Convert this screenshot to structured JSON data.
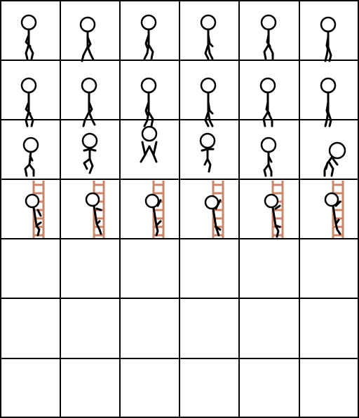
{
  "sprite_sheet": {
    "grid": {
      "columns": 6,
      "rows": 7
    },
    "colors": {
      "background": "#ffffff",
      "grid_line": "#000000",
      "figure": "#000000",
      "ladder": "#c8866a"
    },
    "rows": [
      {
        "name": "walk-a",
        "frames": [
          "walk",
          "walk",
          "walk",
          "walk",
          "walk",
          "walk"
        ]
      },
      {
        "name": "walk-b",
        "frames": [
          "walk",
          "walk",
          "walk",
          "walk",
          "walk",
          "walk"
        ]
      },
      {
        "name": "jump",
        "frames": [
          "crouch",
          "jump-rise",
          "jump-peak",
          "jump-fall",
          "land",
          "roll"
        ]
      },
      {
        "name": "climb",
        "frames": [
          "climb",
          "climb",
          "climb",
          "climb",
          "climb",
          "climb"
        ]
      },
      {
        "name": "empty-1",
        "frames": [
          "empty",
          "empty",
          "empty",
          "empty",
          "empty",
          "empty"
        ]
      },
      {
        "name": "empty-2",
        "frames": [
          "empty",
          "empty",
          "empty",
          "empty",
          "empty",
          "empty"
        ]
      },
      {
        "name": "empty-3",
        "frames": [
          "empty",
          "empty",
          "empty",
          "empty",
          "empty",
          "empty"
        ]
      }
    ]
  }
}
